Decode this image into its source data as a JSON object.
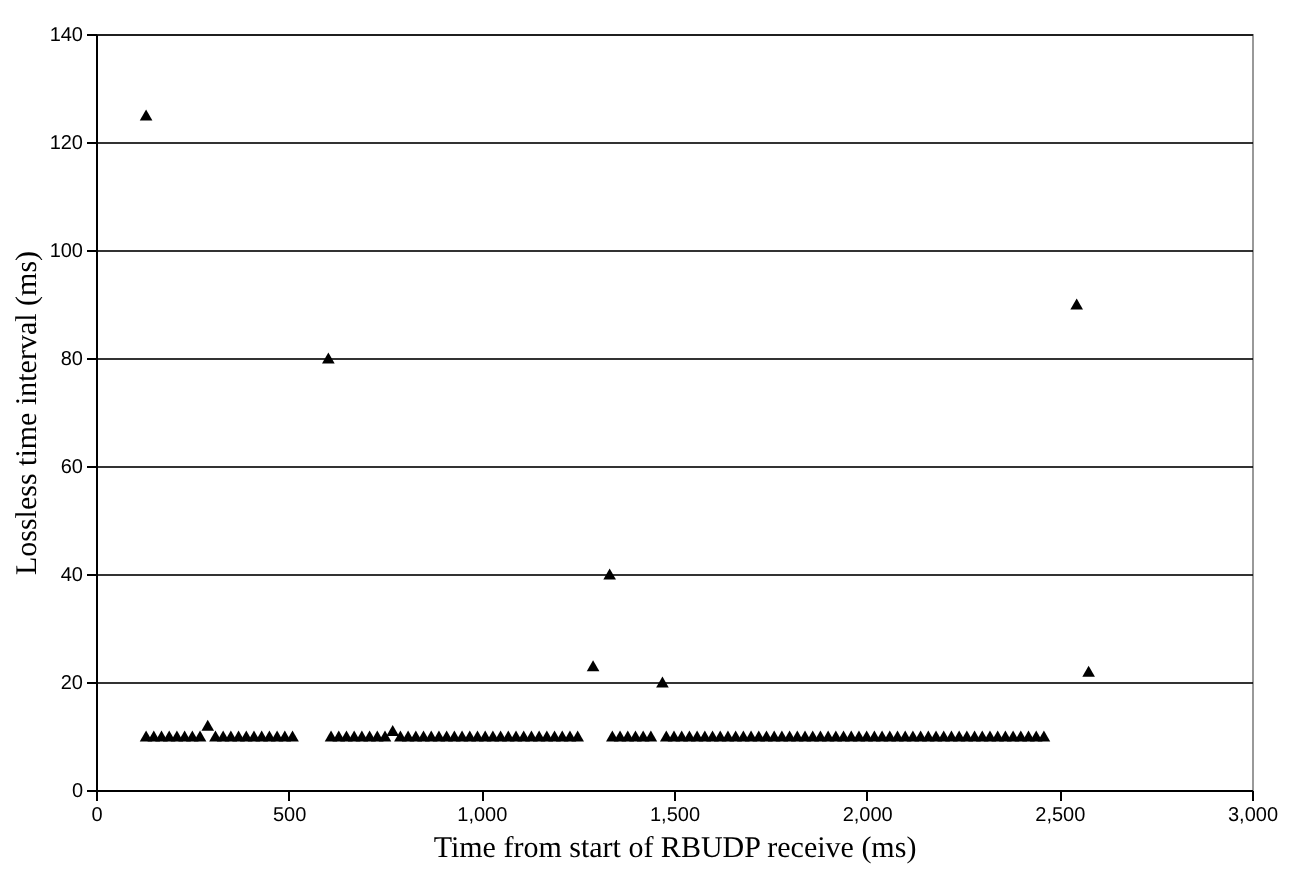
{
  "chart_data": {
    "type": "scatter",
    "xlabel": "Time from start of RBUDP receive (ms)",
    "ylabel": "Lossless time interval (ms)",
    "xlim": [
      0,
      3000
    ],
    "ylim": [
      0,
      140
    ],
    "xticks": [
      0,
      500,
      {
        "value": 1000,
        "label": "1,000"
      },
      {
        "value": 1500,
        "label": "1,500"
      },
      {
        "value": 2000,
        "label": "2,000"
      },
      {
        "value": 2500,
        "label": "2,500"
      },
      {
        "value": 3000,
        "label": "3,000"
      }
    ],
    "yticks": [
      0,
      20,
      40,
      60,
      80,
      100,
      120,
      140
    ],
    "grid": "y",
    "marker": "triangle",
    "legend": false,
    "series": [
      {
        "color": "#000000",
        "x": [
          130,
          150,
          170,
          190,
          210,
          230,
          250,
          270,
          290,
          310,
          330,
          350,
          370,
          390,
          410,
          430,
          450,
          470,
          490,
          510,
          610,
          630,
          650,
          670,
          690,
          710,
          730,
          750,
          770,
          790,
          810,
          830,
          850,
          870,
          890,
          910,
          930,
          950,
          970,
          990,
          1010,
          1030,
          1050,
          1070,
          1090,
          1110,
          1130,
          1150,
          1170,
          1190,
          1210,
          1230,
          1250,
          1340,
          1360,
          1380,
          1400,
          1420,
          1440,
          1480,
          1500,
          1520,
          1540,
          1560,
          1580,
          1600,
          1620,
          1640,
          1660,
          1680,
          1700,
          1720,
          1740,
          1760,
          1780,
          1800,
          1820,
          1840,
          1860,
          1880,
          1900,
          1920,
          1940,
          1960,
          1980,
          2000,
          2020,
          2040,
          2060,
          2080,
          2100,
          2120,
          2140,
          2160,
          2180,
          2200,
          2220,
          2240,
          2260,
          2280,
          2300,
          2320,
          2340,
          2360,
          2380,
          2400,
          2420,
          2440,
          2460,
          130,
          603,
          1290,
          1333,
          1470,
          2545,
          2576
        ],
        "values": [
          10,
          10,
          10,
          10,
          10,
          10,
          10,
          10,
          12,
          10,
          10,
          10,
          10,
          10,
          10,
          10,
          10,
          10,
          10,
          10,
          10,
          10,
          10,
          10,
          10,
          10,
          10,
          10,
          11,
          10,
          10,
          10,
          10,
          10,
          10,
          10,
          10,
          10,
          10,
          10,
          10,
          10,
          10,
          10,
          10,
          10,
          10,
          10,
          10,
          10,
          10,
          10,
          10,
          10,
          10,
          10,
          10,
          10,
          10,
          10,
          10,
          10,
          10,
          10,
          10,
          10,
          10,
          10,
          10,
          10,
          10,
          10,
          10,
          10,
          10,
          10,
          10,
          10,
          10,
          10,
          10,
          10,
          10,
          10,
          10,
          10,
          10,
          10,
          10,
          10,
          10,
          10,
          10,
          10,
          10,
          10,
          10,
          10,
          10,
          10,
          10,
          10,
          10,
          10,
          10,
          10,
          10,
          10,
          10,
          125,
          80,
          23,
          40,
          20,
          90,
          22
        ]
      }
    ]
  }
}
